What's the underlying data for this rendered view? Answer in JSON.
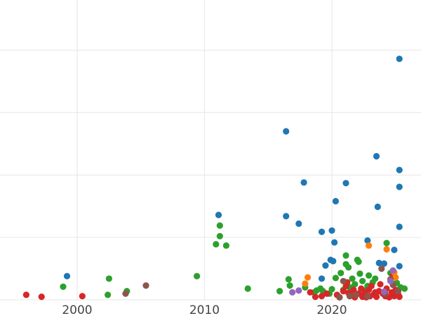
{
  "chart_data": {
    "type": "scatter",
    "title": "",
    "xlabel": "",
    "ylabel": "",
    "xlim": [
      1994,
      2027
    ],
    "ylim": [
      0,
      475
    ],
    "x_ticks": [
      2000,
      2010,
      2020
    ],
    "x_tick_labels": [
      "2000",
      "2010",
      "2020"
    ],
    "y_gridlines": [
      0,
      100,
      200,
      300,
      400
    ],
    "grid": true,
    "legend": "none",
    "series": [
      {
        "color": "#1f77b4",
        "points": [
          [
            1999.2,
            38
          ],
          [
            2011.1,
            136
          ],
          [
            2016.4,
            134
          ],
          [
            2016.4,
            270
          ],
          [
            2017.4,
            122
          ],
          [
            2017.8,
            188
          ],
          [
            2019.2,
            109
          ],
          [
            2019.2,
            34
          ],
          [
            2019.5,
            55
          ],
          [
            2019.9,
            64
          ],
          [
            2020.0,
            111
          ],
          [
            2020.1,
            62
          ],
          [
            2020.2,
            92
          ],
          [
            2020.3,
            158
          ],
          [
            2021.1,
            187
          ],
          [
            2022.8,
            95
          ],
          [
            2023.5,
            230
          ],
          [
            2023.6,
            149
          ],
          [
            2023.7,
            59
          ],
          [
            2024.1,
            58
          ],
          [
            2024.9,
            80
          ],
          [
            2025.3,
            208
          ],
          [
            2025.3,
            181
          ],
          [
            2025.3,
            117
          ],
          [
            2025.3,
            54
          ],
          [
            2025.3,
            386
          ]
        ]
      },
      {
        "color": "#2ca02c",
        "points": [
          [
            1998.9,
            21
          ],
          [
            2002.5,
            34
          ],
          [
            2002.4,
            8
          ],
          [
            2003.9,
            14
          ],
          [
            2009.4,
            38
          ],
          [
            2011.2,
            119
          ],
          [
            2011.2,
            102
          ],
          [
            2010.9,
            89
          ],
          [
            2011.7,
            87
          ],
          [
            2013.4,
            18
          ],
          [
            2015.9,
            14
          ],
          [
            2016.6,
            33
          ],
          [
            2016.7,
            23
          ],
          [
            2017.9,
            20
          ],
          [
            2018.6,
            12
          ],
          [
            2018.8,
            15
          ],
          [
            2019.1,
            18
          ],
          [
            2019.3,
            14
          ],
          [
            2019.8,
            10
          ],
          [
            2020.0,
            17
          ],
          [
            2020.3,
            35
          ],
          [
            2020.7,
            43
          ],
          [
            2020.9,
            16
          ],
          [
            2021.1,
            71
          ],
          [
            2021.1,
            57
          ],
          [
            2021.3,
            52
          ],
          [
            2021.6,
            34
          ],
          [
            2021.8,
            25
          ],
          [
            2022.0,
            64
          ],
          [
            2022.1,
            61
          ],
          [
            2022.2,
            42
          ],
          [
            2022.4,
            30
          ],
          [
            2022.6,
            15
          ],
          [
            2022.9,
            39
          ],
          [
            2023.2,
            28
          ],
          [
            2023.4,
            34
          ],
          [
            2024.3,
            91
          ],
          [
            2024.6,
            43
          ],
          [
            2024.8,
            26
          ],
          [
            2025.1,
            27
          ],
          [
            2025.4,
            20
          ],
          [
            2025.7,
            18
          ],
          [
            2022.8,
            22
          ],
          [
            2021.4,
            20
          ]
        ]
      },
      {
        "color": "#d62728",
        "points": [
          [
            1996.0,
            8
          ],
          [
            1997.2,
            5
          ],
          [
            2000.4,
            6
          ],
          [
            2018.3,
            12
          ],
          [
            2018.7,
            5
          ],
          [
            2019.2,
            6
          ],
          [
            2019.6,
            10
          ],
          [
            2020.4,
            8
          ],
          [
            2020.6,
            4
          ],
          [
            2020.9,
            14
          ],
          [
            2021.1,
            22
          ],
          [
            2021.2,
            28
          ],
          [
            2021.3,
            11
          ],
          [
            2021.5,
            7
          ],
          [
            2021.7,
            16
          ],
          [
            2021.8,
            4
          ],
          [
            2022.1,
            10
          ],
          [
            2022.3,
            18
          ],
          [
            2022.4,
            5
          ],
          [
            2022.6,
            12
          ],
          [
            2022.7,
            4
          ],
          [
            2022.9,
            16
          ],
          [
            2023.0,
            6
          ],
          [
            2023.1,
            22
          ],
          [
            2023.3,
            9
          ],
          [
            2023.5,
            5
          ],
          [
            2023.7,
            14
          ],
          [
            2023.8,
            25
          ],
          [
            2024.0,
            10
          ],
          [
            2024.2,
            6
          ],
          [
            2024.3,
            18
          ],
          [
            2024.5,
            4
          ],
          [
            2024.7,
            12
          ],
          [
            2024.8,
            39
          ],
          [
            2024.9,
            6
          ],
          [
            2025.0,
            16
          ],
          [
            2025.2,
            9
          ],
          [
            2025.3,
            5
          ],
          [
            2022.5,
            8
          ],
          [
            2023.4,
            12
          ]
        ]
      },
      {
        "color": "#ff7f0e",
        "points": [
          [
            2017.9,
            26
          ],
          [
            2018.1,
            36
          ],
          [
            2022.9,
            87
          ],
          [
            2024.3,
            81
          ],
          [
            2024.9,
            44
          ],
          [
            2025.0,
            36
          ]
        ]
      },
      {
        "color": "#8c564b",
        "points": [
          [
            2003.8,
            10
          ],
          [
            2005.4,
            23
          ],
          [
            2020.9,
            30
          ],
          [
            2021.4,
            6
          ],
          [
            2021.9,
            8
          ],
          [
            2022.8,
            6
          ],
          [
            2023.9,
            50
          ],
          [
            2024.2,
            10
          ],
          [
            2024.6,
            33
          ],
          [
            2024.8,
            24
          ],
          [
            2025.2,
            14
          ],
          [
            2020.6,
            4
          ]
        ]
      },
      {
        "color": "#9467bd",
        "points": [
          [
            2016.9,
            12
          ],
          [
            2017.4,
            15
          ],
          [
            2024.1,
            13
          ],
          [
            2024.6,
            30
          ],
          [
            2024.8,
            47
          ]
        ]
      }
    ]
  }
}
